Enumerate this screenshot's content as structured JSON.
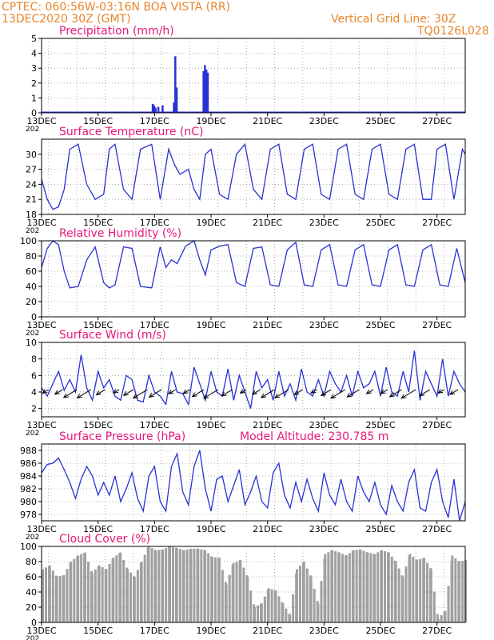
{
  "header": {
    "line1_left": "CPTEC:  060:56W-03:16N  BOA VISTA (RR)",
    "line2_left": "13DEC2020 30Z (GMT)",
    "line1_right": "Vertical Grid Line: 30Z",
    "line2_right": "TQ0126L028"
  },
  "colors": {
    "header": "#e8852a",
    "panel_title": "#e8167a",
    "series": "#2832d4",
    "cloud": "#a0a0a0",
    "wind_arrow": "#000000",
    "grid": "#9a9a9a"
  },
  "chart_data": [
    {
      "type": "bar",
      "title": "Precipitation (mm/h)",
      "xlim_days": [
        13.0,
        28.0
      ],
      "x_ticks": [
        "13DEC",
        "15DEC",
        "17DEC",
        "19DEC",
        "21DEC",
        "23DEC",
        "25DEC",
        "27DEC"
      ],
      "ylim": [
        0,
        5
      ],
      "y_ticks": [
        0,
        1,
        2,
        3,
        4,
        5
      ],
      "grid": true,
      "x_unit": "day of December 2020",
      "x": [
        16.9,
        16.95,
        17.0,
        17.1,
        17.25,
        17.65,
        17.7,
        17.75,
        18.7,
        18.75,
        18.8,
        18.85,
        23.35,
        25.3,
        26.9
      ],
      "values": [
        0.6,
        0.5,
        0.35,
        0.4,
        0.5,
        0.7,
        3.8,
        1.7,
        2.8,
        3.2,
        2.9,
        2.7,
        0.05,
        0.05,
        0.05
      ]
    },
    {
      "type": "line",
      "title": "Surface Temperature (nC)",
      "xlim_days": [
        13.0,
        28.0
      ],
      "x_ticks": [
        "13DEC",
        "15DEC",
        "17DEC",
        "19DEC",
        "21DEC",
        "23DEC",
        "25DEC",
        "27DEC"
      ],
      "ylim": [
        18,
        33
      ],
      "y_ticks": [
        18,
        21,
        24,
        27,
        30
      ],
      "grid": true,
      "x_unit": "day of December 2020",
      "x": [
        13.0,
        13.2,
        13.4,
        13.6,
        13.8,
        14.0,
        14.3,
        14.6,
        14.9,
        15.2,
        15.4,
        15.6,
        15.9,
        16.2,
        16.5,
        16.9,
        17.2,
        17.5,
        17.7,
        17.9,
        18.2,
        18.4,
        18.6,
        18.8,
        19.0,
        19.3,
        19.6,
        19.9,
        20.2,
        20.5,
        20.8,
        21.1,
        21.4,
        21.7,
        22.0,
        22.3,
        22.6,
        22.9,
        23.2,
        23.5,
        23.8,
        24.1,
        24.4,
        24.7,
        25.0,
        25.3,
        25.6,
        25.9,
        26.2,
        26.5,
        26.8,
        27.0,
        27.3,
        27.6,
        27.9,
        28.0
      ],
      "values": [
        25,
        21,
        19,
        19.5,
        23,
        31,
        32,
        24,
        21,
        22,
        31,
        32,
        23,
        21,
        31,
        32,
        21,
        31,
        28,
        26,
        27,
        23,
        21,
        30,
        31,
        22,
        21,
        30,
        32,
        23,
        21,
        31,
        32,
        22,
        21,
        31,
        32,
        22,
        21,
        31,
        32,
        22,
        21,
        31,
        32,
        22,
        21,
        31,
        32,
        21,
        21,
        31,
        32,
        21,
        31,
        30
      ]
    },
    {
      "type": "line",
      "title": "Relative Humidity (%)",
      "xlim_days": [
        13.0,
        28.0
      ],
      "x_ticks": [
        "13DEC",
        "15DEC",
        "17DEC",
        "19DEC",
        "21DEC",
        "23DEC",
        "25DEC",
        "27DEC"
      ],
      "ylim": [
        0,
        100
      ],
      "y_ticks": [
        0,
        20,
        40,
        60,
        80,
        100
      ],
      "grid": true,
      "x_unit": "day of December 2020",
      "x": [
        13.0,
        13.2,
        13.4,
        13.6,
        13.8,
        14.0,
        14.3,
        14.6,
        14.9,
        15.2,
        15.4,
        15.6,
        15.9,
        16.2,
        16.5,
        16.9,
        17.2,
        17.4,
        17.6,
        17.8,
        18.1,
        18.4,
        18.6,
        18.8,
        19.0,
        19.3,
        19.6,
        19.9,
        20.2,
        20.5,
        20.8,
        21.1,
        21.4,
        21.7,
        22.0,
        22.3,
        22.6,
        22.9,
        23.2,
        23.5,
        23.8,
        24.1,
        24.4,
        24.7,
        25.0,
        25.3,
        25.6,
        25.9,
        26.2,
        26.5,
        26.8,
        27.1,
        27.4,
        27.7,
        28.0
      ],
      "values": [
        65,
        90,
        100,
        95,
        60,
        38,
        40,
        75,
        92,
        45,
        38,
        42,
        92,
        90,
        40,
        38,
        92,
        65,
        75,
        70,
        93,
        100,
        75,
        55,
        88,
        93,
        95,
        45,
        40,
        90,
        92,
        42,
        40,
        88,
        98,
        42,
        40,
        88,
        95,
        42,
        40,
        88,
        95,
        42,
        40,
        88,
        95,
        42,
        40,
        88,
        95,
        42,
        40,
        90,
        45
      ]
    },
    {
      "type": "line",
      "title": "Surface Wind (m/s)",
      "xlim_days": [
        13.0,
        28.0
      ],
      "x_ticks": [
        "13DEC",
        "15DEC",
        "17DEC",
        "19DEC",
        "21DEC",
        "23DEC",
        "25DEC",
        "27DEC"
      ],
      "ylim": [
        1,
        10
      ],
      "y_ticks": [
        2,
        4,
        6,
        8,
        10
      ],
      "grid": true,
      "x_unit": "day of December 2020",
      "x": [
        13.0,
        13.2,
        13.4,
        13.6,
        13.8,
        14.0,
        14.2,
        14.4,
        14.6,
        14.8,
        15.0,
        15.2,
        15.4,
        15.6,
        15.8,
        16.0,
        16.2,
        16.4,
        16.6,
        16.8,
        17.0,
        17.2,
        17.4,
        17.6,
        17.8,
        18.0,
        18.2,
        18.4,
        18.6,
        18.8,
        19.0,
        19.2,
        19.4,
        19.6,
        19.8,
        20.0,
        20.2,
        20.4,
        20.6,
        20.8,
        21.0,
        21.2,
        21.4,
        21.6,
        21.8,
        22.0,
        22.2,
        22.4,
        22.6,
        22.8,
        23.0,
        23.2,
        23.4,
        23.6,
        23.8,
        24.0,
        24.2,
        24.4,
        24.6,
        24.8,
        25.0,
        25.2,
        25.4,
        25.6,
        25.8,
        26.0,
        26.2,
        26.4,
        26.6,
        26.8,
        27.0,
        27.2,
        27.4,
        27.6,
        27.8,
        28.0
      ],
      "values": [
        4.5,
        3.5,
        5.0,
        6.5,
        4.2,
        5.5,
        4.0,
        8.5,
        4.5,
        3.0,
        6.5,
        4.5,
        5.5,
        3.5,
        3.0,
        6.0,
        5.5,
        3.0,
        2.8,
        6.0,
        4.0,
        3.5,
        2.5,
        6.5,
        4.0,
        3.8,
        2.5,
        7.0,
        5.0,
        3.0,
        6.5,
        4.0,
        3.5,
        6.8,
        3.0,
        6.0,
        4.0,
        2.0,
        6.5,
        4.5,
        5.5,
        3.0,
        6.5,
        3.5,
        5.0,
        3.0,
        6.8,
        4.0,
        3.5,
        5.5,
        3.5,
        6.5,
        5.0,
        4.0,
        6.0,
        3.5,
        6.5,
        4.5,
        5.0,
        6.5,
        3.5,
        7.0,
        4.0,
        3.5,
        6.5,
        4.0,
        9.0,
        3.0,
        6.5,
        5.0,
        3.5,
        8.0,
        3.5,
        6.5,
        5.0,
        4.0
      ]
    },
    {
      "type": "line",
      "title": "Surface Pressure (hPa)",
      "annotation": "Model Altitude: 230.785 m",
      "xlim_days": [
        13.0,
        28.0
      ],
      "x_ticks": [
        "13DEC",
        "15DEC",
        "17DEC",
        "19DEC",
        "21DEC",
        "23DEC",
        "25DEC",
        "27DEC"
      ],
      "ylim": [
        977,
        989
      ],
      "y_ticks": [
        978,
        980,
        982,
        984,
        986,
        988
      ],
      "grid": true,
      "x_unit": "day of December 2020",
      "x": [
        13.0,
        13.2,
        13.4,
        13.6,
        13.8,
        14.0,
        14.2,
        14.4,
        14.6,
        14.8,
        15.0,
        15.2,
        15.4,
        15.6,
        15.8,
        16.0,
        16.2,
        16.4,
        16.6,
        16.8,
        17.0,
        17.2,
        17.4,
        17.6,
        17.8,
        18.0,
        18.2,
        18.4,
        18.6,
        18.8,
        19.0,
        19.2,
        19.4,
        19.6,
        19.8,
        20.0,
        20.2,
        20.4,
        20.6,
        20.8,
        21.0,
        21.2,
        21.4,
        21.6,
        21.8,
        22.0,
        22.2,
        22.4,
        22.6,
        22.8,
        23.0,
        23.2,
        23.4,
        23.6,
        23.8,
        24.0,
        24.2,
        24.4,
        24.6,
        24.8,
        25.0,
        25.2,
        25.4,
        25.6,
        25.8,
        26.0,
        26.2,
        26.4,
        26.6,
        26.8,
        27.0,
        27.2,
        27.4,
        27.6,
        27.8,
        28.0
      ],
      "values": [
        984.5,
        985.8,
        986.0,
        986.8,
        985.0,
        983.0,
        980.5,
        983.5,
        985.5,
        984.0,
        981.0,
        983.0,
        981.0,
        984.0,
        980.0,
        982.0,
        984.5,
        980.5,
        978.5,
        984.0,
        985.5,
        980.0,
        978.5,
        985.5,
        987.5,
        981.5,
        979.5,
        985.5,
        988.0,
        982.0,
        978.5,
        983.5,
        984.0,
        980.0,
        982.5,
        985.0,
        979.5,
        981.5,
        984.0,
        980.0,
        979.0,
        984.5,
        986.0,
        981.0,
        979.0,
        983.0,
        980.0,
        983.5,
        980.5,
        978.5,
        984.5,
        981.0,
        979.5,
        983.5,
        980.0,
        978.5,
        984.0,
        981.5,
        980.0,
        983.0,
        979.5,
        978.0,
        982.5,
        980.0,
        978.5,
        983.0,
        985.0,
        979.0,
        978.5,
        983.0,
        985.0,
        980.0,
        977.5,
        983.5,
        977.0,
        980.0
      ]
    },
    {
      "type": "bar",
      "title": "Cloud Cover (%)",
      "xlim_days": [
        13.0,
        28.0
      ],
      "x_ticks": [
        "13DEC",
        "15DEC",
        "17DEC",
        "19DEC",
        "21DEC",
        "23DEC",
        "25DEC",
        "27DEC"
      ],
      "ylim": [
        0,
        100
      ],
      "y_ticks": [
        0,
        20,
        40,
        60,
        80,
        100
      ],
      "grid": true,
      "x_unit": "day of December 2020",
      "x": [
        13.0,
        13.25,
        13.5,
        13.75,
        14.0,
        14.25,
        14.5,
        14.75,
        15.0,
        15.25,
        15.5,
        15.75,
        16.0,
        16.25,
        16.5,
        16.75,
        17.0,
        17.25,
        17.5,
        17.75,
        18.0,
        18.25,
        18.5,
        18.75,
        19.0,
        19.25,
        19.5,
        19.75,
        20.0,
        20.25,
        20.5,
        20.75,
        21.0,
        21.25,
        21.5,
        21.75,
        22.0,
        22.25,
        22.5,
        22.75,
        23.0,
        23.25,
        23.5,
        23.75,
        24.0,
        24.25,
        24.5,
        24.75,
        25.0,
        25.25,
        25.5,
        25.75,
        26.0,
        26.25,
        26.5,
        26.75,
        27.0,
        27.25,
        27.5,
        27.75,
        28.0
      ],
      "values": [
        70,
        75,
        60,
        62,
        80,
        88,
        92,
        65,
        75,
        70,
        85,
        92,
        70,
        60,
        80,
        100,
        95,
        96,
        100,
        98,
        95,
        97,
        97,
        95,
        86,
        85,
        50,
        78,
        82,
        60,
        20,
        25,
        45,
        42,
        25,
        10,
        70,
        80,
        60,
        25,
        90,
        95,
        92,
        88,
        95,
        96,
        92,
        90,
        95,
        92,
        80,
        60,
        90,
        82,
        85,
        70,
        5,
        15,
        88,
        80,
        82
      ]
    }
  ],
  "panels": [
    {
      "title": "Precipitation (mm/h)"
    },
    {
      "title": "Surface Temperature (nC)"
    },
    {
      "title": "Relative Humidity (%)"
    },
    {
      "title": "Surface Wind (m/s)"
    },
    {
      "title": "Surface Pressure (hPa)",
      "annotation": "Model Altitude: 230.785 m"
    },
    {
      "title": "Cloud Cover (%)"
    }
  ],
  "axis": {
    "date_labels": [
      "13DEC",
      "15DEC",
      "17DEC",
      "19DEC",
      "21DEC",
      "23DEC",
      "25DEC",
      "27DEC"
    ],
    "year_fragment": "202"
  }
}
